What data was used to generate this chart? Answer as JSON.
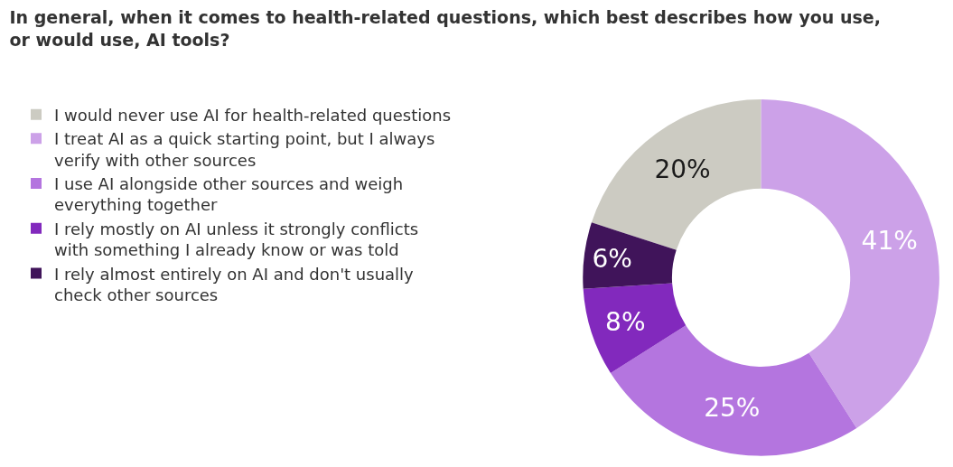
{
  "chart_data": {
    "type": "donut",
    "title": "In general, when it comes to health-related questions, which best describes how you use, or would use, AI tools?",
    "categories": [
      "I would never use AI for health-related questions",
      "I treat AI as a quick starting point, but I always verify with other sources",
      "I use AI alongside other sources and weigh everything together",
      "I rely mostly on AI unless it strongly conflicts with something I already know or was told",
      "I rely almost entirely on AI and don't usually check other sources"
    ],
    "values": [
      20,
      41,
      25,
      8,
      6
    ],
    "value_labels": [
      "20%",
      "41%",
      "25%",
      "8%",
      "6%"
    ],
    "colors": [
      "#cccbc2",
      "#cca1e8",
      "#b475df",
      "#8229bd",
      "#40145a"
    ],
    "legend": "left"
  }
}
